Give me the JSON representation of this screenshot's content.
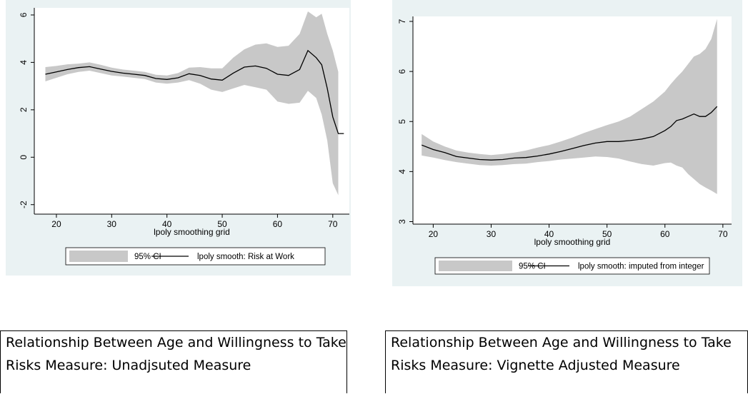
{
  "charts": {
    "left": {
      "caption": "Relationship Between Age and Willingness to Take Risks Measure: Unadjsuted Measure"
    },
    "right": {
      "caption": "Relationship Between Age and Willingness to Take Risks Measure: Vignette Adjusted Measure"
    }
  },
  "chart_data": [
    {
      "type": "line",
      "xlabel": "lpoly smoothing grid",
      "ylabel": "",
      "xlim": [
        16,
        73
      ],
      "ylim": [
        -2.4,
        6.3
      ],
      "xticks": [
        20,
        30,
        40,
        50,
        60,
        70
      ],
      "yticks": [
        -2,
        0,
        2,
        4,
        6
      ],
      "grid": false,
      "legend_position": "bottom",
      "legend": [
        "95% CI",
        "lpoly smooth: Risk at Work"
      ],
      "ci_color": "#c8c8c8",
      "line_color": "#000000",
      "series": [
        {
          "name": "lpoly smooth: Risk at Work",
          "x": [
            18,
            20,
            22,
            24,
            26,
            28,
            30,
            32,
            34,
            36,
            38,
            40,
            42,
            44,
            46,
            48,
            50,
            52,
            54,
            56,
            58,
            60,
            62,
            64,
            65.5,
            67,
            68,
            69,
            70,
            71,
            72
          ],
          "y": [
            3.5,
            3.6,
            3.7,
            3.78,
            3.82,
            3.72,
            3.62,
            3.55,
            3.5,
            3.45,
            3.32,
            3.28,
            3.35,
            3.52,
            3.45,
            3.3,
            3.25,
            3.55,
            3.8,
            3.85,
            3.75,
            3.5,
            3.45,
            3.7,
            4.5,
            4.2,
            3.9,
            2.9,
            1.7,
            1.0,
            1.0
          ],
          "ci_upper": [
            3.8,
            3.85,
            3.92,
            3.95,
            4.0,
            3.9,
            3.78,
            3.7,
            3.65,
            3.6,
            3.48,
            3.45,
            3.55,
            3.78,
            3.8,
            3.75,
            3.75,
            4.2,
            4.55,
            4.75,
            4.8,
            4.65,
            4.7,
            5.2,
            6.15,
            5.9,
            6.05,
            5.2,
            4.5,
            3.6,
            null
          ],
          "ci_lower": [
            3.2,
            3.35,
            3.5,
            3.6,
            3.65,
            3.55,
            3.45,
            3.4,
            3.35,
            3.3,
            3.15,
            3.1,
            3.15,
            3.25,
            3.1,
            2.85,
            2.75,
            2.9,
            3.05,
            2.95,
            2.85,
            2.35,
            2.25,
            2.3,
            2.8,
            2.5,
            1.8,
            0.7,
            -1.1,
            -1.6,
            null
          ]
        }
      ]
    },
    {
      "type": "line",
      "xlabel": "lpoly smoothing grid",
      "ylabel": "",
      "xlim": [
        16.5,
        71.5
      ],
      "ylim": [
        2.95,
        7.1
      ],
      "xticks": [
        20,
        30,
        40,
        50,
        60,
        70
      ],
      "yticks": [
        3,
        4,
        5,
        6,
        7
      ],
      "grid": false,
      "legend_position": "bottom",
      "legend": [
        "95% CI",
        "lpoly smooth: imputed from integer"
      ],
      "ci_color": "#c8c8c8",
      "line_color": "#000000",
      "series": [
        {
          "name": "lpoly smooth: imputed from integer",
          "x": [
            18,
            20,
            22,
            24,
            26,
            28,
            30,
            32,
            34,
            36,
            38,
            40,
            42,
            44,
            46,
            48,
            50,
            52,
            54,
            56,
            58,
            60,
            61,
            62,
            63,
            64,
            65,
            66,
            67,
            68,
            69
          ],
          "y": [
            4.53,
            4.44,
            4.38,
            4.3,
            4.27,
            4.24,
            4.23,
            4.24,
            4.27,
            4.28,
            4.31,
            4.35,
            4.4,
            4.46,
            4.52,
            4.57,
            4.6,
            4.6,
            4.62,
            4.65,
            4.7,
            4.82,
            4.9,
            5.02,
            5.05,
            5.1,
            5.15,
            5.1,
            5.1,
            5.18,
            5.3
          ],
          "ci_upper": [
            4.75,
            4.6,
            4.5,
            4.42,
            4.38,
            4.35,
            4.33,
            4.35,
            4.38,
            4.42,
            4.48,
            4.53,
            4.6,
            4.68,
            4.77,
            4.85,
            4.93,
            5.0,
            5.1,
            5.25,
            5.4,
            5.6,
            5.75,
            5.88,
            6.0,
            6.15,
            6.3,
            6.35,
            6.45,
            6.65,
            7.05
          ],
          "ci_lower": [
            4.32,
            4.28,
            4.23,
            4.19,
            4.16,
            4.13,
            4.12,
            4.13,
            4.15,
            4.16,
            4.19,
            4.21,
            4.24,
            4.26,
            4.28,
            4.3,
            4.29,
            4.26,
            4.2,
            4.15,
            4.12,
            4.17,
            4.18,
            4.12,
            4.08,
            3.95,
            3.85,
            3.75,
            3.68,
            3.62,
            3.55
          ]
        }
      ]
    }
  ]
}
